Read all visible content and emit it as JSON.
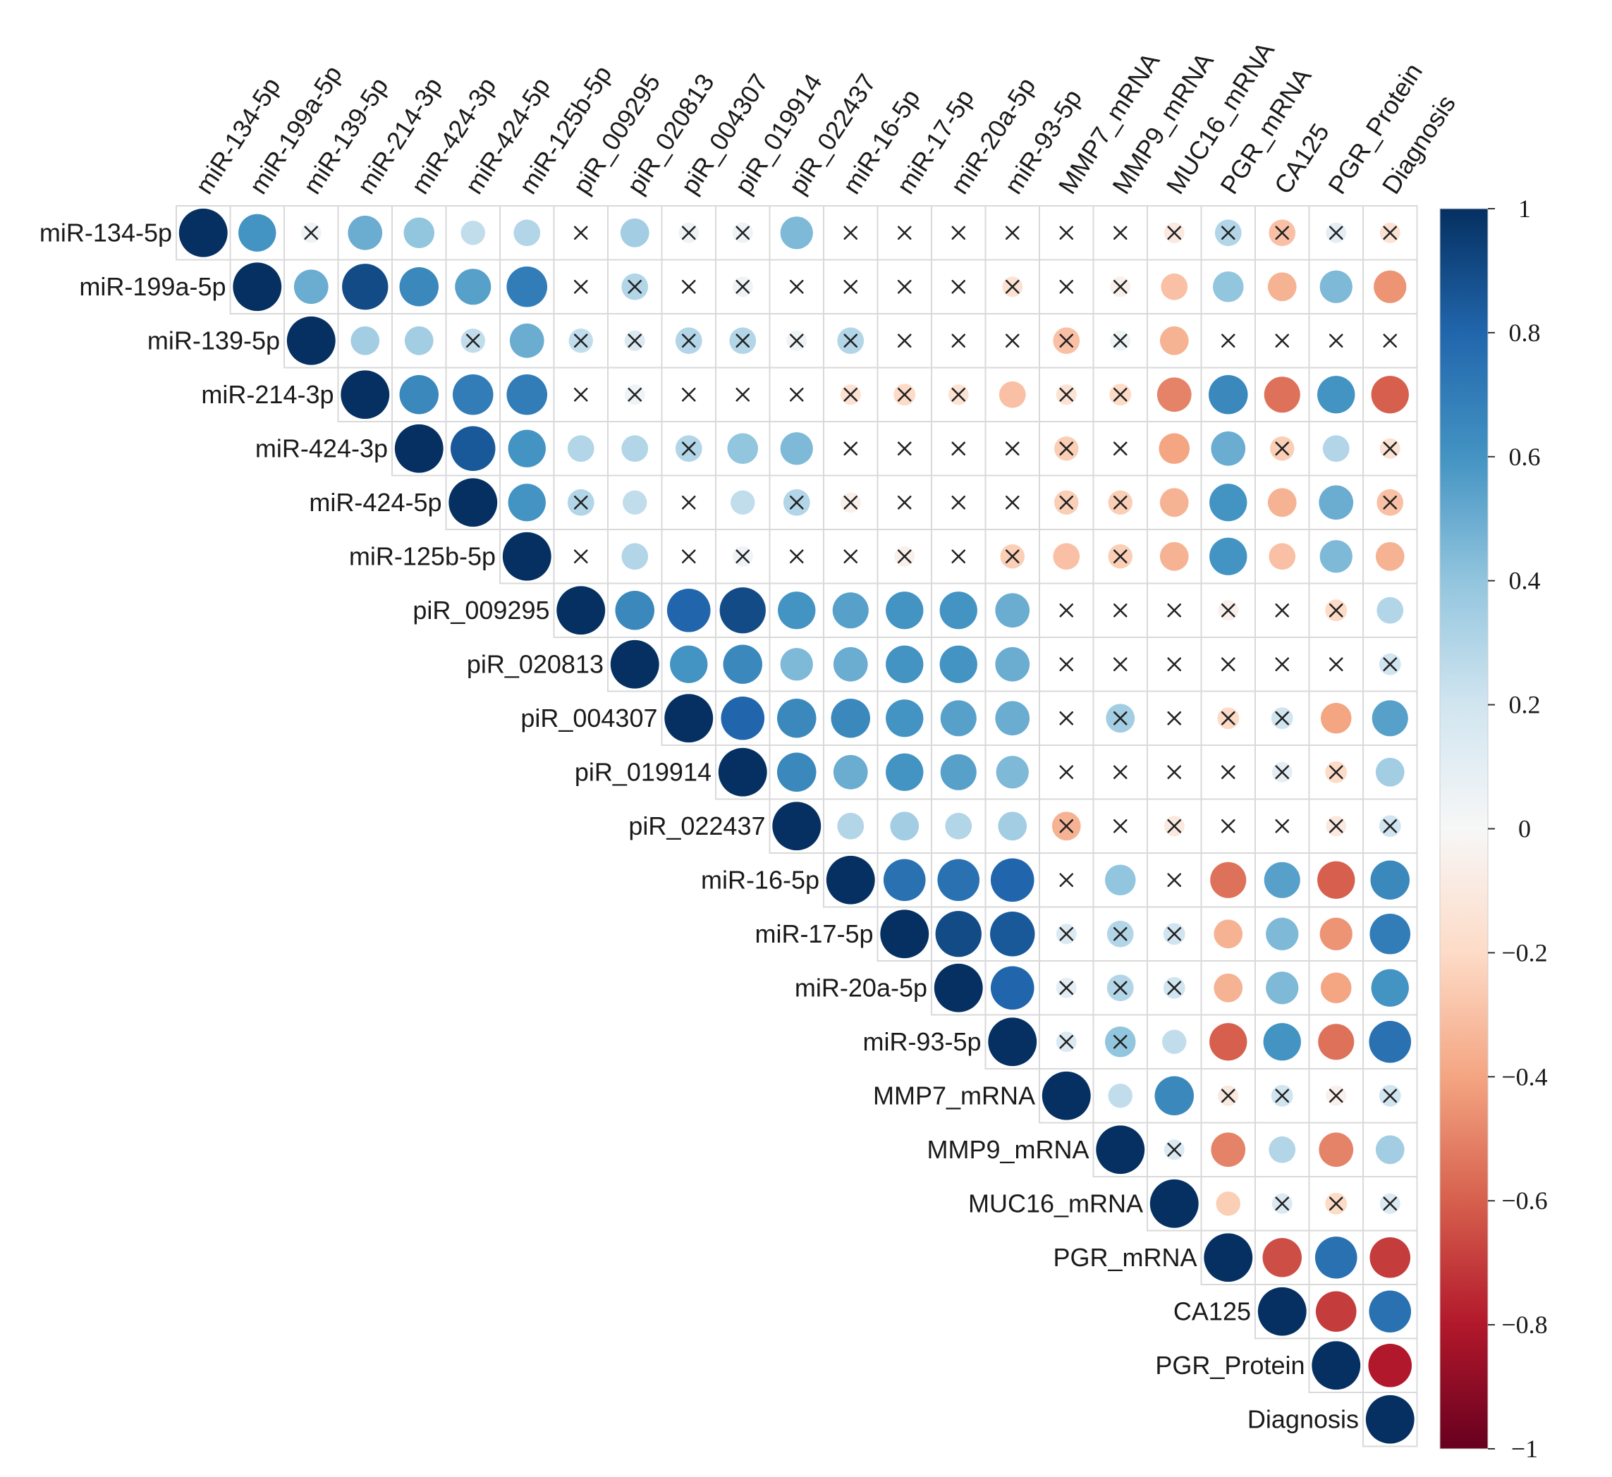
{
  "chart_data": {
    "type": "heatmap",
    "variables": [
      "miR-134-5p",
      "miR-199a-5p",
      "miR-139-5p",
      "miR-214-3p",
      "miR-424-3p",
      "miR-424-5p",
      "miR-125b-5p",
      "piR_009295",
      "piR_020813",
      "piR_004307",
      "piR_019914",
      "piR_022437",
      "miR-16-5p",
      "miR-17-5p",
      "miR-20a-5p",
      "miR-93-5p",
      "MMP7_mRNA",
      "MMP9_mRNA",
      "MUC16_mRNA",
      "PGR_mRNA",
      "CA125",
      "PGR_Protein",
      "Diagnosis"
    ],
    "matrix_layout": "upper-triangle, row i lists correlations with variables i..22",
    "cross_marks_non_significant": true,
    "colorbar": {
      "range": [
        -1,
        1
      ],
      "ticks": [
        "1",
        "0.8",
        "0.6",
        "0.4",
        "0.2",
        "0",
        "−0.2",
        "−0.4",
        "−0.6",
        "−0.8",
        "−1"
      ],
      "colors": {
        "neg_end": "#67001f",
        "neg_mid": "#d6604d",
        "neg_light": "#fddbc7",
        "zero": "#f7f7f7",
        "pos_light": "#d1e5f0",
        "pos_mid": "#4393c3",
        "pos_end": "#053061"
      }
    },
    "rows": [
      {
        "values": [
          1,
          0.6,
          0.05,
          0.5,
          0.4,
          0.25,
          0.3,
          0,
          0.35,
          0.05,
          0.05,
          0.45,
          0,
          0,
          0,
          0,
          0,
          0,
          -0.1,
          0.3,
          -0.3,
          0.1,
          -0.15
        ],
        "crosses": [
          0,
          0,
          1,
          0,
          0,
          0,
          0,
          1,
          0,
          1,
          1,
          0,
          1,
          1,
          1,
          1,
          1,
          1,
          1,
          1,
          1,
          1,
          1
        ]
      },
      {
        "values": [
          1,
          0.5,
          0.9,
          0.65,
          0.55,
          0.7,
          0,
          0.3,
          0,
          0.05,
          0,
          0,
          0,
          0,
          -0.15,
          0,
          -0.05,
          -0.3,
          0.4,
          -0.35,
          0.45,
          -0.45
        ],
        "crosses": [
          0,
          0,
          0,
          0,
          0,
          0,
          1,
          1,
          1,
          1,
          1,
          1,
          1,
          1,
          1,
          1,
          1,
          0,
          0,
          0,
          0,
          0
        ]
      },
      {
        "values": [
          1,
          0.35,
          0.35,
          0.25,
          0.5,
          0.25,
          0.15,
          0.3,
          0.3,
          0.05,
          0.3,
          0,
          0,
          0,
          -0.3,
          0.05,
          -0.35,
          0,
          0,
          0,
          0
        ],
        "crosses": [
          0,
          0,
          0,
          1,
          0,
          1,
          1,
          1,
          1,
          1,
          1,
          1,
          1,
          1,
          1,
          1,
          0,
          1,
          1,
          1,
          1
        ]
      },
      {
        "values": [
          1,
          0.65,
          0.7,
          0.7,
          0,
          0.05,
          0,
          0,
          0,
          -0.15,
          -0.2,
          -0.15,
          -0.3,
          -0.15,
          -0.2,
          -0.5,
          0.65,
          -0.55,
          0.6,
          -0.6
        ],
        "crosses": [
          0,
          0,
          0,
          0,
          1,
          1,
          1,
          1,
          1,
          1,
          1,
          1,
          0,
          1,
          1,
          0,
          0,
          0,
          0,
          0
        ]
      },
      {
        "values": [
          1,
          0.85,
          0.6,
          0.3,
          0.3,
          0.3,
          0.4,
          0.45,
          0,
          0,
          0,
          0,
          -0.25,
          0,
          -0.4,
          0.5,
          -0.25,
          0.3,
          -0.15
        ],
        "crosses": [
          0,
          0,
          0,
          0,
          0,
          1,
          0,
          0,
          1,
          1,
          1,
          1,
          1,
          1,
          0,
          0,
          1,
          0,
          1
        ]
      },
      {
        "values": [
          1,
          0.6,
          0.3,
          0.25,
          0,
          0.25,
          0.3,
          -0.05,
          0,
          0,
          0,
          -0.25,
          -0.25,
          -0.35,
          0.6,
          -0.35,
          0.5,
          -0.3
        ],
        "crosses": [
          0,
          0,
          1,
          0,
          1,
          0,
          1,
          1,
          1,
          1,
          1,
          1,
          1,
          0,
          0,
          0,
          0,
          1
        ]
      },
      {
        "values": [
          1,
          0,
          0.3,
          0,
          0.05,
          0,
          0,
          -0.05,
          0,
          -0.25,
          -0.3,
          -0.25,
          -0.35,
          0.6,
          -0.3,
          0.45,
          -0.35
        ],
        "crosses": [
          0,
          1,
          0,
          1,
          1,
          1,
          1,
          1,
          1,
          1,
          0,
          1,
          0,
          0,
          0,
          0,
          0
        ]
      },
      {
        "values": [
          1,
          0.65,
          0.8,
          0.9,
          0.6,
          0.55,
          0.6,
          0.6,
          0.5,
          0,
          0,
          0,
          -0.05,
          0,
          -0.2,
          0.3
        ],
        "crosses": [
          0,
          0,
          0,
          0,
          0,
          0,
          0,
          0,
          0,
          1,
          1,
          1,
          1,
          1,
          1,
          0
        ]
      },
      {
        "values": [
          1,
          0.6,
          0.65,
          0.45,
          0.5,
          0.6,
          0.6,
          0.5,
          0,
          0,
          0,
          0,
          0,
          0,
          0.2
        ],
        "crosses": [
          0,
          0,
          0,
          0,
          0,
          0,
          0,
          0,
          1,
          1,
          1,
          1,
          1,
          1,
          1
        ]
      },
      {
        "values": [
          1,
          0.8,
          0.65,
          0.65,
          0.6,
          0.55,
          0.5,
          0,
          0.35,
          0,
          -0.2,
          0.2,
          -0.4,
          0.55
        ],
        "crosses": [
          0,
          0,
          0,
          0,
          0,
          0,
          0,
          1,
          1,
          1,
          1,
          1,
          0,
          0
        ]
      },
      {
        "values": [
          1,
          0.65,
          0.5,
          0.6,
          0.55,
          0.45,
          0,
          0,
          0,
          0,
          0.1,
          -0.2,
          0.35
        ],
        "crosses": [
          0,
          0,
          0,
          0,
          0,
          0,
          1,
          1,
          1,
          1,
          1,
          1,
          0
        ]
      },
      {
        "values": [
          1,
          0.3,
          0.35,
          0.3,
          0.35,
          -0.35,
          0,
          -0.1,
          0,
          0,
          -0.1,
          0.2
        ],
        "crosses": [
          0,
          0,
          0,
          0,
          0,
          1,
          1,
          1,
          1,
          1,
          1,
          1
        ]
      },
      {
        "values": [
          1,
          0.75,
          0.75,
          0.8,
          0,
          0.4,
          0,
          -0.55,
          0.55,
          -0.6,
          0.65
        ],
        "crosses": [
          0,
          0,
          0,
          0,
          1,
          0,
          1,
          0,
          0,
          0,
          0
        ]
      },
      {
        "values": [
          1,
          0.9,
          0.85,
          0.15,
          0.3,
          0.2,
          -0.35,
          0.45,
          -0.45,
          0.7
        ],
        "crosses": [
          0,
          0,
          0,
          1,
          1,
          1,
          0,
          0,
          0,
          0
        ]
      },
      {
        "values": [
          1,
          0.8,
          0.1,
          0.3,
          0.2,
          -0.35,
          0.45,
          -0.4,
          0.6
        ],
        "crosses": [
          0,
          0,
          1,
          1,
          1,
          0,
          0,
          0,
          0
        ]
      },
      {
        "values": [
          1,
          0.15,
          0.4,
          0.25,
          -0.6,
          0.6,
          -0.55,
          0.75
        ],
        "crosses": [
          0,
          1,
          1,
          0,
          0,
          0,
          0,
          0
        ]
      },
      {
        "values": [
          1,
          0.25,
          0.65,
          -0.1,
          0.2,
          -0.05,
          0.2
        ],
        "crosses": [
          0,
          0,
          0,
          1,
          1,
          1,
          1
        ]
      },
      {
        "values": [
          1,
          0.15,
          -0.5,
          0.3,
          -0.5,
          0.35
        ],
        "crosses": [
          0,
          1,
          0,
          0,
          0,
          0
        ]
      },
      {
        "values": [
          1,
          -0.25,
          0.15,
          -0.2,
          0.15
        ],
        "crosses": [
          0,
          0,
          1,
          1,
          1
        ]
      },
      {
        "values": [
          1,
          -0.65,
          0.75,
          -0.7
        ],
        "crosses": [
          0,
          0,
          0,
          0
        ]
      },
      {
        "values": [
          1,
          -0.7,
          0.75
        ],
        "crosses": [
          0,
          0,
          0
        ]
      },
      {
        "values": [
          1,
          -0.8
        ],
        "crosses": [
          0,
          0
        ]
      },
      {
        "values": [
          1
        ],
        "crosses": [
          0
        ]
      }
    ]
  }
}
